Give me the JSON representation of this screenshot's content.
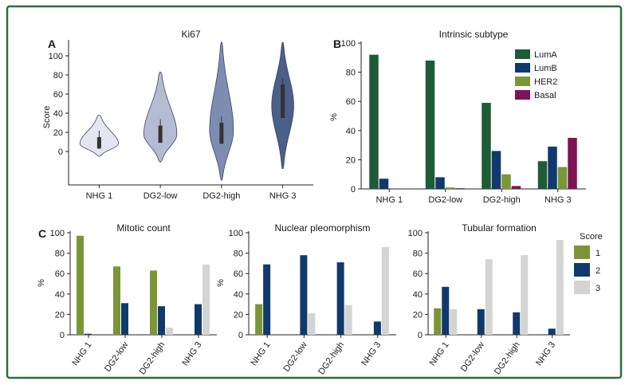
{
  "panel_labels": [
    "A",
    "B",
    "C"
  ],
  "colors": {
    "violin": [
      "#e3e6f0",
      "#b4bcd4",
      "#7d8db2",
      "#4c5f88"
    ],
    "violin_stroke": "#3a4663",
    "box": "#333333",
    "LumA": "#1d5c34",
    "LumB": "#0f3a6b",
    "HER2": "#7a9637",
    "Basal": "#7d1454",
    "score1": "#7a9637",
    "score2": "#0f3a6b",
    "score3": "#d4d4d4"
  },
  "chart_data": [
    {
      "id": "A",
      "type": "violin",
      "title": "Ki67",
      "ylabel": "Score",
      "ylim": [
        -35,
        115
      ],
      "yticks": [
        0,
        20,
        40,
        60,
        80,
        100
      ],
      "categories": [
        "NHG 1",
        "DG2-low",
        "DG2-high",
        "NHG 3"
      ],
      "violins": [
        {
          "min": -5,
          "max": 38,
          "q1": 3,
          "median": 9,
          "q3": 15,
          "peak": 8,
          "width": 0.42
        },
        {
          "min": -11,
          "max": 83,
          "q1": 9,
          "median": 18,
          "q3": 27,
          "peak": 18,
          "width": 0.36
        },
        {
          "min": -30,
          "max": 114,
          "q1": 8,
          "median": 20,
          "q3": 30,
          "peak": 22,
          "width": 0.26
        },
        {
          "min": -18,
          "max": 114,
          "q1": 35,
          "median": 45,
          "q3": 70,
          "peak": 48,
          "width": 0.24
        }
      ]
    },
    {
      "id": "B",
      "type": "bar",
      "title": "Intrinsic subtype",
      "xlabel": "",
      "ylabel": "%",
      "ylim": [
        0,
        100
      ],
      "yticks": [
        0,
        20,
        40,
        60,
        80,
        100
      ],
      "categories": [
        "NHG 1",
        "DG2-low",
        "DG2-high",
        "NHG 3"
      ],
      "legend_position": "top-right",
      "series": [
        {
          "name": "LumA",
          "color_key": "LumA",
          "values": [
            92,
            88,
            59,
            19
          ]
        },
        {
          "name": "LumB",
          "color_key": "LumB",
          "values": [
            7,
            8,
            26,
            29
          ]
        },
        {
          "name": "HER2",
          "color_key": "HER2",
          "values": [
            0,
            1,
            10,
            15
          ]
        },
        {
          "name": "Basal",
          "color_key": "Basal",
          "values": [
            0,
            0.5,
            2,
            35
          ]
        }
      ]
    },
    {
      "id": "C1",
      "type": "bar",
      "title": "Mitotic count",
      "ylabel": "%",
      "ylim": [
        0,
        100
      ],
      "yticks": [
        0,
        20,
        40,
        60,
        80,
        100
      ],
      "categories": [
        "NHG 1",
        "DG2-low",
        "DG2-high",
        "NHG 3"
      ],
      "series": [
        {
          "name": "1",
          "color_key": "score1",
          "values": [
            97,
            67,
            63,
            0
          ]
        },
        {
          "name": "2",
          "color_key": "score2",
          "values": [
            1,
            31,
            28,
            30
          ]
        },
        {
          "name": "3",
          "color_key": "score3",
          "values": [
            0,
            0,
            7,
            69
          ]
        }
      ]
    },
    {
      "id": "C2",
      "type": "bar",
      "title": "Nuclear pleomorphism",
      "ylabel": "%",
      "ylim": [
        0,
        100
      ],
      "yticks": [
        0,
        20,
        40,
        60,
        80,
        100
      ],
      "categories": [
        "NHG 1",
        "DG2-low",
        "DG2-high",
        "NHG 3"
      ],
      "series": [
        {
          "name": "1",
          "color_key": "score1",
          "values": [
            30,
            0,
            0,
            0
          ]
        },
        {
          "name": "2",
          "color_key": "score2",
          "values": [
            69,
            78,
            71,
            13
          ]
        },
        {
          "name": "3",
          "color_key": "score3",
          "values": [
            0,
            21,
            29,
            86
          ]
        }
      ]
    },
    {
      "id": "C3",
      "type": "bar",
      "title": "Tubular formation",
      "ylabel": "",
      "ylim": [
        0,
        100
      ],
      "yticks": [
        0,
        20,
        40,
        60,
        80,
        100
      ],
      "categories": [
        "NHG 1",
        "DG2-low",
        "DG2-high",
        "NHG 3"
      ],
      "legend_title": "Score",
      "legend_position": "right",
      "series": [
        {
          "name": "1",
          "color_key": "score1",
          "values": [
            26,
            0,
            0,
            0
          ]
        },
        {
          "name": "2",
          "color_key": "score2",
          "values": [
            47,
            25,
            22,
            6
          ]
        },
        {
          "name": "3",
          "color_key": "score3",
          "values": [
            25,
            74,
            78,
            93
          ]
        }
      ]
    }
  ]
}
